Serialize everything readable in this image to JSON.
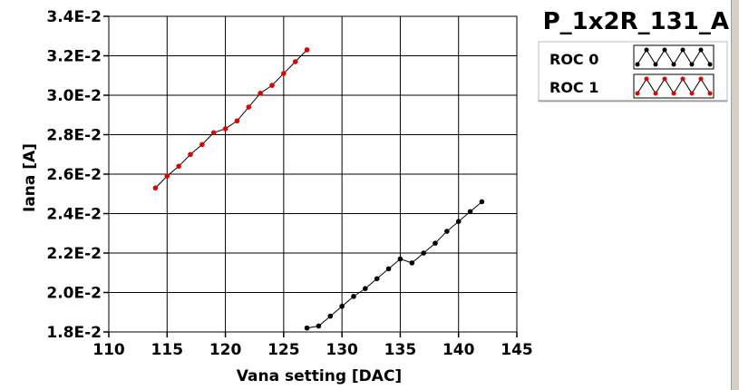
{
  "chart_data": {
    "type": "line",
    "title": "P_1x2R_131_A",
    "xlabel": "Vana setting [DAC]",
    "ylabel": "Iana [A]",
    "xlim": [
      110,
      145
    ],
    "ylim": [
      0.018,
      0.034
    ],
    "x_ticks": [
      110,
      115,
      120,
      125,
      130,
      135,
      140,
      145
    ],
    "y_ticks": [
      0.018,
      0.02,
      0.022,
      0.024,
      0.026,
      0.028,
      0.03,
      0.032,
      0.034
    ],
    "y_tick_labels": [
      "1.8E-2",
      "2.0E-2",
      "2.2E-2",
      "2.4E-2",
      "2.6E-2",
      "2.8E-2",
      "3.0E-2",
      "3.2E-2",
      "3.4E-2"
    ],
    "grid": true,
    "legend_position": "top-right",
    "series": [
      {
        "name": "ROC 0",
        "color": "#000000",
        "x": [
          127,
          128,
          129,
          130,
          131,
          132,
          133,
          134,
          135,
          136,
          137,
          138,
          139,
          140,
          141,
          142
        ],
        "y": [
          0.0182,
          0.0183,
          0.0188,
          0.0193,
          0.0198,
          0.0202,
          0.0207,
          0.0212,
          0.0217,
          0.0215,
          0.022,
          0.0225,
          0.0231,
          0.0236,
          0.0241,
          0.0246
        ]
      },
      {
        "name": "ROC 1",
        "color": "#dd0000",
        "x": [
          114,
          115,
          116,
          117,
          118,
          119,
          120,
          121,
          122,
          123,
          124,
          125,
          126,
          127
        ],
        "y": [
          0.0253,
          0.0259,
          0.0264,
          0.027,
          0.0275,
          0.0281,
          0.0283,
          0.0287,
          0.0294,
          0.0301,
          0.0305,
          0.0311,
          0.0317,
          0.0323
        ]
      }
    ]
  }
}
